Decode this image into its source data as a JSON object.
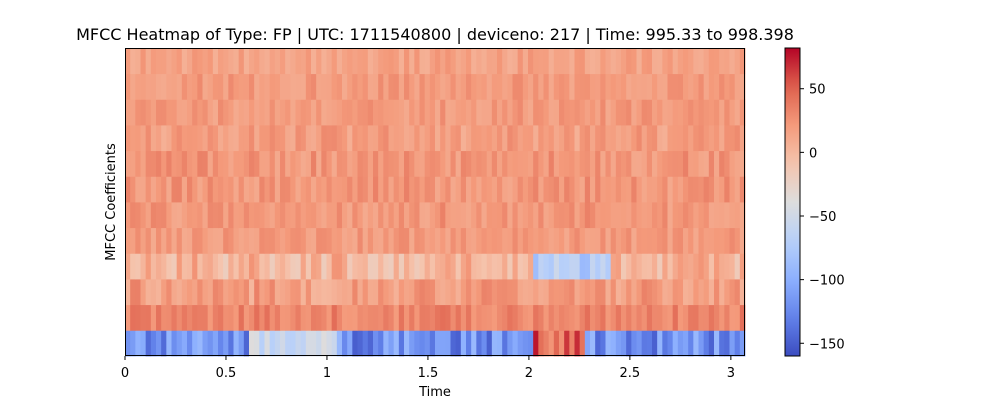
{
  "chart_data": {
    "type": "heatmap",
    "title": "MFCC Heatmap of Type: FP | UTC: 1711540800 | deviceno: 217 | Time: 995.33 to 998.398",
    "xlabel": "Time",
    "ylabel": "MFCC Coefficients",
    "x_ticks": [
      {
        "value": 0,
        "label": "0"
      },
      {
        "value": 0.5,
        "label": "0.5"
      },
      {
        "value": 1,
        "label": "1"
      },
      {
        "value": 1.5,
        "label": "1.5"
      },
      {
        "value": 2,
        "label": "2"
      },
      {
        "value": 2.5,
        "label": "2.5"
      },
      {
        "value": 3,
        "label": "3"
      }
    ],
    "xlim": [
      0,
      3.07
    ],
    "n_coefficients": 12,
    "n_frames": 120,
    "colormap": "coolwarm",
    "colorbar": {
      "vmin": -160,
      "vmax": 82,
      "ticks": [
        {
          "value": 50,
          "label": "50"
        },
        {
          "value": 0,
          "label": "0"
        },
        {
          "value": -50,
          "label": "−50"
        },
        {
          "value": -100,
          "label": "−100"
        },
        {
          "value": -150,
          "label": "−150"
        }
      ]
    },
    "approx_row_levels_bottom_to_top": [
      {
        "coefficient": 0,
        "description": "strong negative",
        "range": [
          -150,
          -90
        ],
        "except": {
          "time": [
            2.02,
            2.28
          ],
          "range": [
            20,
            80
          ]
        }
      },
      {
        "coefficient": 1,
        "range": [
          20,
          45
        ]
      },
      {
        "coefficient": 2,
        "range": [
          0,
          35
        ]
      },
      {
        "coefficient": 3,
        "range": [
          -20,
          25
        ],
        "except": {
          "time": [
            2.02,
            2.4
          ],
          "range": [
            -90,
            -50
          ]
        }
      },
      {
        "coefficient": 4,
        "range": [
          10,
          30
        ]
      },
      {
        "coefficient": 5,
        "range": [
          10,
          35
        ]
      },
      {
        "coefficient": 6,
        "range": [
          10,
          35
        ]
      },
      {
        "coefficient": 7,
        "range": [
          10,
          35
        ]
      },
      {
        "coefficient": 8,
        "range": [
          5,
          30
        ]
      },
      {
        "coefficient": 9,
        "range": [
          10,
          30
        ]
      },
      {
        "coefficient": 10,
        "range": [
          10,
          30
        ]
      },
      {
        "coefficient": 11,
        "range": [
          5,
          25
        ]
      }
    ]
  }
}
